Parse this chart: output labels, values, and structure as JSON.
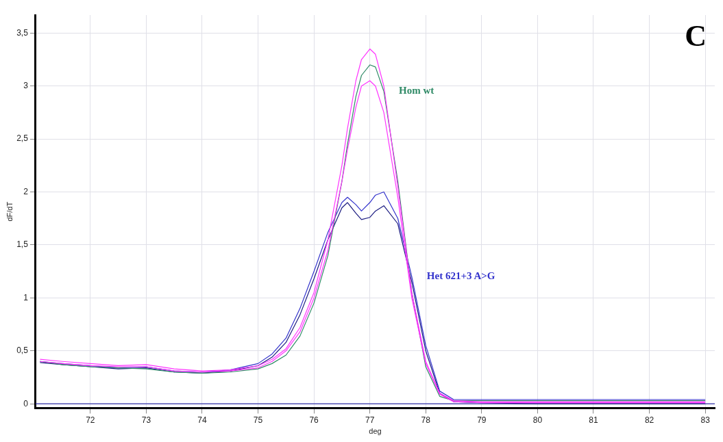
{
  "chart_data": {
    "type": "line",
    "xlabel": "deg",
    "ylabel": "dF/dT",
    "annotations": [
      "C"
    ],
    "x": [
      71.1,
      71.5,
      72,
      72.5,
      73,
      73.5,
      74,
      74.5,
      75,
      75.25,
      75.5,
      75.75,
      76,
      76.25,
      76.5,
      76.6,
      76.75,
      76.85,
      77,
      77.1,
      77.25,
      77.5,
      77.75,
      78,
      78.25,
      78.5,
      79,
      80,
      81,
      82,
      83
    ],
    "series": [
      {
        "color": "#ff33ff",
        "values": [
          0.42,
          0.4,
          0.38,
          0.36,
          0.37,
          0.33,
          0.31,
          0.32,
          0.36,
          0.42,
          0.52,
          0.72,
          1.05,
          1.55,
          2.25,
          2.6,
          3.05,
          3.25,
          3.35,
          3.3,
          3.0,
          2.05,
          1.05,
          0.4,
          0.1,
          0.03,
          0.02,
          0.02,
          0.02,
          0.02,
          0.02
        ]
      },
      {
        "color": "#ff33ff",
        "values": [
          0.4,
          0.38,
          0.36,
          0.35,
          0.35,
          0.31,
          0.3,
          0.31,
          0.34,
          0.4,
          0.5,
          0.68,
          1.0,
          1.45,
          2.1,
          2.4,
          2.8,
          3.0,
          3.05,
          3.0,
          2.75,
          1.95,
          1.0,
          0.38,
          0.09,
          0.02,
          0.01,
          0.01,
          0.01,
          0.01,
          0.01
        ]
      },
      {
        "name": "Hom wt",
        "color": "#2f8a66",
        "values": [
          0.4,
          0.37,
          0.35,
          0.34,
          0.33,
          0.3,
          0.29,
          0.3,
          0.33,
          0.38,
          0.46,
          0.64,
          0.95,
          1.4,
          2.1,
          2.45,
          2.9,
          3.1,
          3.2,
          3.18,
          2.95,
          2.1,
          1.05,
          0.35,
          0.07,
          0.03,
          0.03,
          0.03,
          0.03,
          0.03,
          0.03
        ]
      },
      {
        "name": "Het 621+3 A>G",
        "color": "#3333cc",
        "values": [
          0.4,
          0.38,
          0.36,
          0.34,
          0.35,
          0.31,
          0.3,
          0.32,
          0.38,
          0.47,
          0.62,
          0.9,
          1.25,
          1.62,
          1.9,
          1.95,
          1.88,
          1.82,
          1.9,
          1.97,
          2.0,
          1.75,
          1.2,
          0.55,
          0.12,
          0.04,
          0.04,
          0.04,
          0.04,
          0.04,
          0.04
        ]
      },
      {
        "color": "#1a1a80",
        "values": [
          0.39,
          0.37,
          0.35,
          0.33,
          0.34,
          0.3,
          0.29,
          0.31,
          0.36,
          0.44,
          0.58,
          0.84,
          1.18,
          1.55,
          1.85,
          1.9,
          1.8,
          1.74,
          1.76,
          1.82,
          1.87,
          1.7,
          1.15,
          0.5,
          0.1,
          0.02,
          0.01,
          0.0,
          0.0,
          0.0,
          0.0
        ]
      }
    ],
    "xlim": [
      71.02,
      83.17
    ],
    "ylim": [
      -0.04,
      3.67
    ],
    "xticks": [
      72,
      73,
      74,
      75,
      76,
      77,
      78,
      79,
      80,
      81,
      82,
      83
    ],
    "yticks": [
      0,
      {
        "value": 0.5,
        "label": "0,5"
      },
      1,
      {
        "value": 1.5,
        "label": "1,5"
      },
      2,
      {
        "value": 2.5,
        "label": "2,5"
      },
      3,
      {
        "value": 3.5,
        "label": "3,5"
      }
    ],
    "ref_lines": [
      {
        "axis": "y",
        "value": 0,
        "color": "#3333aa"
      }
    ],
    "grid": true,
    "legend": false,
    "marker": "none",
    "line_style": "solid"
  }
}
